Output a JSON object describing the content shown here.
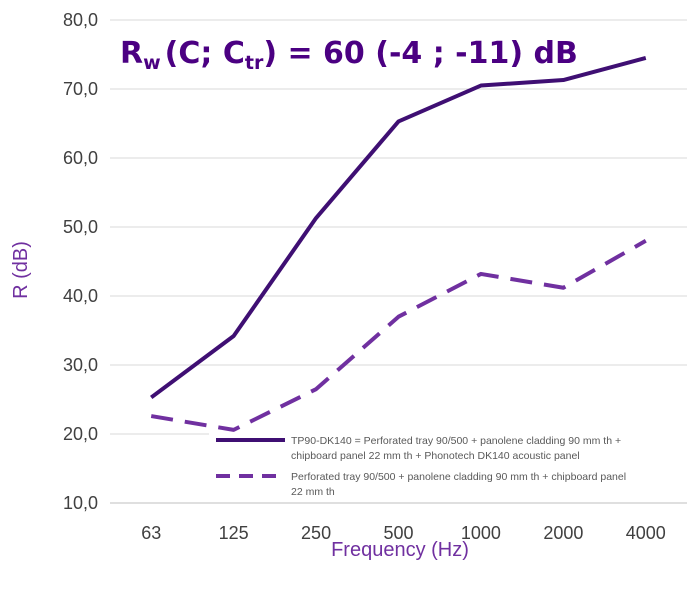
{
  "chart_data": {
    "type": "line",
    "title": "",
    "annotation": {
      "base": "R",
      "sub_w": "w",
      "open": "(C; C",
      "sub_tr": "tr",
      "close": ") = 60 (-4 ; -11) dB"
    },
    "xlabel": "Frequency (Hz)",
    "ylabel": "R (dB)",
    "categories": [
      "63",
      "125",
      "250",
      "500",
      "1000",
      "2000",
      "4000"
    ],
    "y_ticks": [
      "10,0",
      "20,0",
      "30,0",
      "40,0",
      "50,0",
      "60,0",
      "70,0",
      "80,0"
    ],
    "ylim": [
      10,
      80
    ],
    "grid": true,
    "legend_position": "bottom-right inside plot",
    "series": [
      {
        "name_lines": [
          "TP90-DK140 = Perforated tray 90/500 + panolene cladding 90 mm th +",
          "chipboard panel 22 mm th + Phonotech DK140 acoustic panel"
        ],
        "style": "solid",
        "color": "#3f0f73",
        "values": [
          25.3,
          34.2,
          51.3,
          65.3,
          70.5,
          71.3,
          74.5
        ]
      },
      {
        "name_lines": [
          "Perforated tray 90/500 + panolene cladding 90 mm th + chipboard panel",
          "22 mm th"
        ],
        "style": "dashed",
        "color": "#7030a0",
        "values": [
          22.6,
          20.6,
          26.5,
          37.0,
          43.2,
          41.2,
          48.0
        ]
      }
    ]
  }
}
